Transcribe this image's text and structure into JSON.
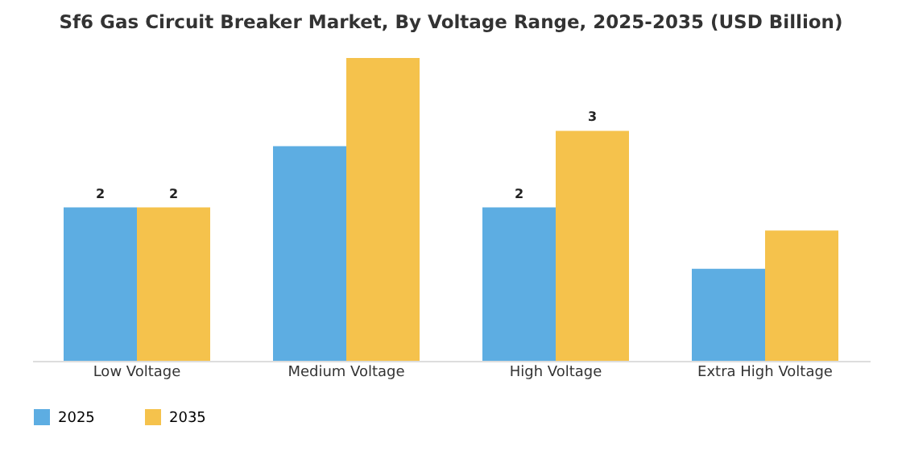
{
  "chart_data": {
    "type": "bar",
    "title": "Sf6 Gas Circuit Breaker Market, By Voltage Range, 2025-2035 (USD Billion)",
    "categories": [
      "Low Voltage",
      "Medium Voltage",
      "High Voltage",
      "Extra High Voltage"
    ],
    "series": [
      {
        "name": "2025",
        "color": "#5dade2",
        "values": [
          2,
          2.8,
          2,
          1.2
        ],
        "value_labels": [
          "2",
          null,
          "2",
          null
        ]
      },
      {
        "name": "2035",
        "color": "#f5c24c",
        "values": [
          2,
          3.95,
          3,
          1.7
        ],
        "value_labels": [
          "2",
          null,
          "3",
          null
        ]
      }
    ],
    "legend": "bottom",
    "grid": false
  }
}
